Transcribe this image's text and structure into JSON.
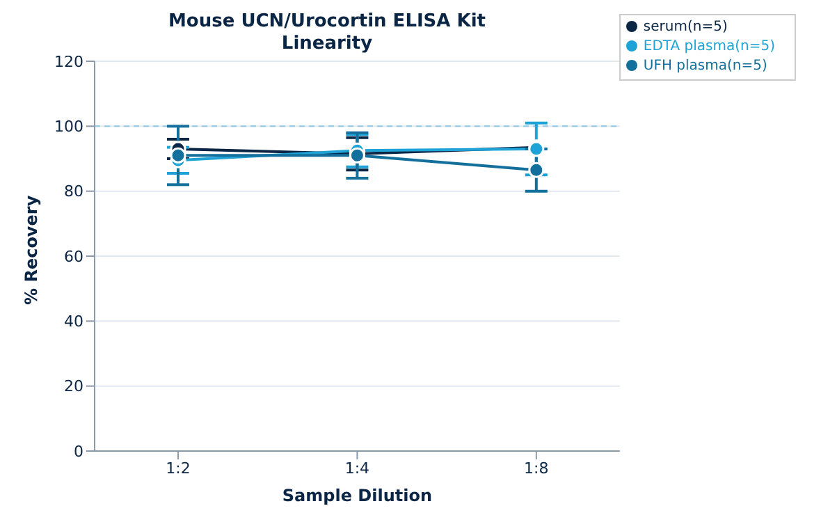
{
  "chart_data": {
    "type": "line",
    "title": "Mouse UCN/Urocortin ELISA Kit",
    "subtitle": "Linearity",
    "xlabel": "Sample Dilution",
    "ylabel": "% Recovery",
    "categories": [
      "1:2",
      "1:4",
      "1:8"
    ],
    "series": [
      {
        "name": "serum(n=5)",
        "color": "#0b2545",
        "values": [
          93,
          91.5,
          93.5
        ],
        "errors": [
          3,
          5,
          null
        ]
      },
      {
        "name": "EDTA plasma(n=5)",
        "color": "#1fa3d6",
        "values": [
          89.5,
          92.5,
          93
        ],
        "errors": [
          4,
          5,
          8
        ]
      },
      {
        "name": "UFH plasma(n=5)",
        "color": "#136f9b",
        "values": [
          91,
          91,
          86.5
        ],
        "errors": [
          9,
          7,
          6.5
        ]
      }
    ],
    "ylim": [
      0,
      120
    ],
    "yticks": [
      0,
      20,
      40,
      60,
      80,
      100,
      120
    ],
    "grid": "y",
    "legend": "top right",
    "marker": "circle",
    "ref_lines": [
      {
        "axis": "y",
        "value": 100,
        "color": "#8ecae6",
        "line_style": "dashed"
      }
    ]
  }
}
